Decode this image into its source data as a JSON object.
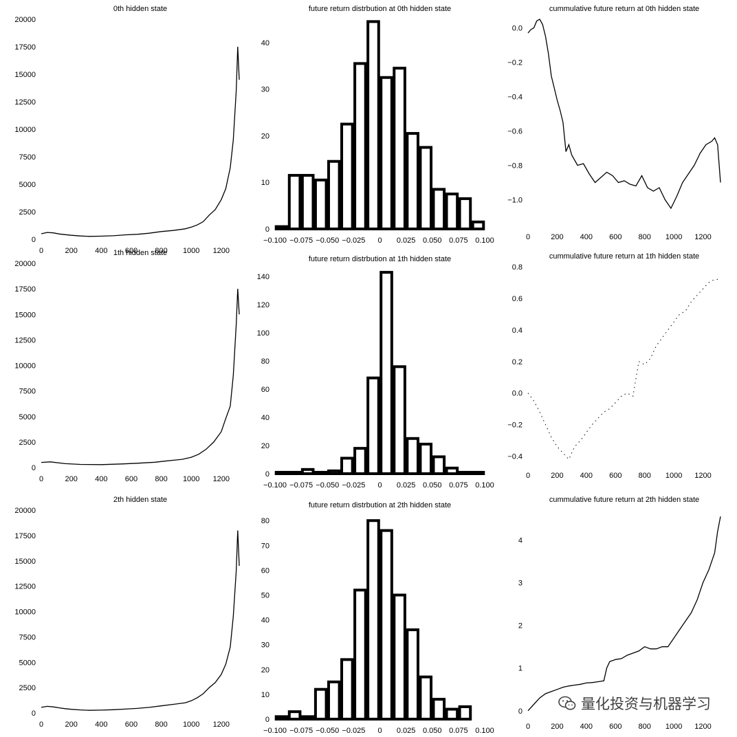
{
  "watermark": {
    "text": "量化投资与机器学习",
    "icon": "wechat-icon"
  },
  "chart_data": [
    {
      "type": "line",
      "title": "0th hidden state",
      "xlim": [
        0,
        1320
      ],
      "ylim": [
        0,
        20000
      ],
      "xticks": [
        0,
        200,
        400,
        600,
        800,
        1000,
        1200
      ],
      "yticks": [
        0,
        2500,
        5000,
        7500,
        10000,
        12500,
        15000,
        17500,
        20000
      ],
      "x": [
        0,
        40,
        80,
        120,
        160,
        200,
        260,
        320,
        400,
        480,
        560,
        640,
        720,
        800,
        880,
        960,
        1000,
        1040,
        1080,
        1120,
        1160,
        1200,
        1230,
        1260,
        1280,
        1300,
        1310,
        1320
      ],
      "y": [
        500,
        620,
        580,
        480,
        420,
        360,
        300,
        260,
        280,
        320,
        400,
        450,
        550,
        700,
        800,
        950,
        1100,
        1300,
        1600,
        2200,
        2700,
        3600,
        4600,
        6500,
        9000,
        13500,
        17500,
        14500
      ]
    },
    {
      "type": "bar",
      "title": "future return distrbution at 0th hidden state",
      "xlim": [
        -0.1,
        0.1
      ],
      "ylim": [
        0,
        45
      ],
      "xticks": [
        -0.1,
        -0.075,
        -0.05,
        -0.025,
        0.0,
        0.025,
        0.05,
        0.075,
        0.1
      ],
      "yticks": [
        0,
        10,
        20,
        30,
        40
      ],
      "x": [
        -0.09375,
        -0.08125,
        -0.06875,
        -0.05625,
        -0.04375,
        -0.03125,
        -0.01875,
        -0.00625,
        0.00625,
        0.01875,
        0.03125,
        0.04375,
        0.05625,
        0.06875,
        0.08125,
        0.09375
      ],
      "values": [
        0.5,
        11.5,
        11.5,
        10.5,
        14.5,
        22.5,
        35.5,
        44.5,
        32.5,
        34.5,
        20.5,
        17.5,
        8.5,
        7.5,
        6.5,
        1.5
      ]
    },
    {
      "type": "line",
      "title": "cummulative future return at 0th hidden state",
      "xlim": [
        0,
        1320
      ],
      "ylim": [
        -1.15,
        0.05
      ],
      "xticks": [
        0,
        200,
        400,
        600,
        800,
        1000,
        1200
      ],
      "yticks": [
        0.0,
        -0.2,
        -0.4,
        -0.6,
        -0.8,
        -1.0
      ],
      "x": [
        0,
        20,
        40,
        60,
        80,
        100,
        120,
        140,
        160,
        180,
        200,
        220,
        240,
        260,
        280,
        300,
        340,
        380,
        420,
        460,
        500,
        540,
        580,
        620,
        660,
        700,
        740,
        780,
        820,
        860,
        900,
        940,
        980,
        1020,
        1060,
        1100,
        1140,
        1180,
        1220,
        1260,
        1280,
        1300,
        1320
      ],
      "y": [
        -0.03,
        -0.01,
        0.0,
        0.04,
        0.05,
        0.02,
        -0.05,
        -0.15,
        -0.28,
        -0.35,
        -0.42,
        -0.48,
        -0.55,
        -0.72,
        -0.68,
        -0.74,
        -0.8,
        -0.79,
        -0.85,
        -0.9,
        -0.87,
        -0.84,
        -0.86,
        -0.9,
        -0.89,
        -0.91,
        -0.92,
        -0.86,
        -0.93,
        -0.95,
        -0.93,
        -1.0,
        -1.05,
        -0.98,
        -0.9,
        -0.85,
        -0.8,
        -0.73,
        -0.68,
        -0.66,
        -0.64,
        -0.68,
        -0.9
      ]
    },
    {
      "type": "line",
      "title": "1th hidden state",
      "xlim": [
        0,
        1320
      ],
      "ylim": [
        0,
        20000
      ],
      "xticks": [
        0,
        200,
        400,
        600,
        800,
        1000,
        1200
      ],
      "yticks": [
        0,
        2500,
        5000,
        7500,
        10000,
        12500,
        15000,
        17500,
        20000
      ],
      "x": [
        0,
        60,
        160,
        260,
        400,
        540,
        640,
        760,
        820,
        940,
        1000,
        1050,
        1100,
        1150,
        1200,
        1230,
        1260,
        1280,
        1300,
        1310,
        1320
      ],
      "y": [
        500,
        550,
        380,
        300,
        280,
        350,
        420,
        520,
        620,
        800,
        1000,
        1300,
        1800,
        2500,
        3500,
        4800,
        6000,
        9000,
        14000,
        17500,
        15000
      ]
    },
    {
      "type": "bar",
      "title": "future return distrbution at 1th hidden state",
      "xlim": [
        -0.1,
        0.1
      ],
      "ylim": [
        0,
        145
      ],
      "xticks": [
        -0.1,
        -0.075,
        -0.05,
        -0.025,
        0.0,
        0.025,
        0.05,
        0.075,
        0.1
      ],
      "yticks": [
        0,
        20,
        40,
        60,
        80,
        100,
        120,
        140
      ],
      "x": [
        -0.09375,
        -0.08125,
        -0.06875,
        -0.05625,
        -0.04375,
        -0.03125,
        -0.01875,
        -0.00625,
        0.00625,
        0.01875,
        0.03125,
        0.04375,
        0.05625,
        0.06875,
        0.08125,
        0.09375
      ],
      "values": [
        1,
        1,
        3,
        1,
        2,
        11,
        18,
        68,
        143,
        76,
        25,
        21,
        12,
        4,
        1,
        1
      ]
    },
    {
      "type": "line",
      "title": "cummulative future return at 1th hidden state",
      "xlim": [
        0,
        1320
      ],
      "ylim": [
        -0.45,
        0.8
      ],
      "xticks": [
        0,
        200,
        400,
        600,
        800,
        1000,
        1200
      ],
      "yticks": [
        -0.4,
        -0.2,
        0.0,
        0.2,
        0.4,
        0.6,
        0.8
      ],
      "x": [
        0,
        40,
        80,
        120,
        160,
        200,
        240,
        280,
        320,
        360,
        400,
        440,
        480,
        520,
        560,
        600,
        640,
        680,
        720,
        760,
        800,
        840,
        880,
        920,
        960,
        1000,
        1040,
        1080,
        1120,
        1160,
        1200,
        1240,
        1280,
        1320
      ],
      "y": [
        0.0,
        -0.05,
        -0.12,
        -0.2,
        -0.28,
        -0.34,
        -0.38,
        -0.42,
        -0.34,
        -0.3,
        -0.25,
        -0.2,
        -0.16,
        -0.12,
        -0.1,
        -0.06,
        -0.02,
        0.0,
        -0.02,
        0.2,
        0.18,
        0.22,
        0.3,
        0.35,
        0.4,
        0.45,
        0.5,
        0.52,
        0.58,
        0.62,
        0.66,
        0.7,
        0.72,
        0.72
      ]
    },
    {
      "type": "line",
      "title": "2th hidden state",
      "xlim": [
        0,
        1320
      ],
      "ylim": [
        0,
        20000
      ],
      "xticks": [
        0,
        200,
        400,
        600,
        800,
        1000,
        1200
      ],
      "yticks": [
        0,
        2500,
        5000,
        7500,
        10000,
        12500,
        15000,
        17500,
        20000
      ],
      "x": [
        0,
        40,
        80,
        120,
        160,
        200,
        260,
        320,
        400,
        480,
        560,
        640,
        720,
        800,
        880,
        960,
        1000,
        1040,
        1080,
        1120,
        1160,
        1200,
        1230,
        1260,
        1280,
        1300,
        1310,
        1320
      ],
      "y": [
        550,
        650,
        600,
        500,
        420,
        360,
        300,
        260,
        280,
        320,
        380,
        450,
        550,
        700,
        850,
        1000,
        1200,
        1500,
        1900,
        2500,
        3000,
        3800,
        4800,
        6500,
        9500,
        14000,
        18000,
        14500
      ]
    },
    {
      "type": "bar",
      "title": "future return distrbution at 2th hidden state",
      "xlim": [
        -0.1,
        0.1
      ],
      "ylim": [
        0,
        82
      ],
      "xticks": [
        -0.1,
        -0.075,
        -0.05,
        -0.025,
        0.0,
        0.025,
        0.05,
        0.075,
        0.1
      ],
      "yticks": [
        0,
        10,
        20,
        30,
        40,
        50,
        60,
        70,
        80
      ],
      "x": [
        -0.09375,
        -0.08125,
        -0.06875,
        -0.05625,
        -0.04375,
        -0.03125,
        -0.01875,
        -0.00625,
        0.00625,
        0.01875,
        0.03125,
        0.04375,
        0.05625,
        0.06875,
        0.08125,
        0.09375
      ],
      "values": [
        1,
        3,
        1,
        12,
        15,
        24,
        52,
        80,
        76,
        50,
        36,
        17,
        8,
        4,
        5,
        0
      ]
    },
    {
      "type": "line",
      "title": "cummulative future return at 2th hidden state",
      "xlim": [
        0,
        1320
      ],
      "ylim": [
        -0.1,
        4.7
      ],
      "xticks": [
        0,
        200,
        400,
        600,
        800,
        1000,
        1200
      ],
      "yticks": [
        0,
        1,
        2,
        3,
        4
      ],
      "x": [
        0,
        40,
        80,
        120,
        160,
        200,
        240,
        280,
        320,
        360,
        400,
        440,
        480,
        520,
        540,
        560,
        600,
        640,
        680,
        720,
        760,
        800,
        840,
        880,
        920,
        960,
        1000,
        1040,
        1080,
        1120,
        1160,
        1200,
        1240,
        1280,
        1300,
        1320
      ],
      "y": [
        0.0,
        0.15,
        0.3,
        0.4,
        0.45,
        0.5,
        0.55,
        0.58,
        0.6,
        0.62,
        0.65,
        0.66,
        0.68,
        0.7,
        1.0,
        1.15,
        1.2,
        1.22,
        1.3,
        1.35,
        1.4,
        1.5,
        1.45,
        1.45,
        1.5,
        1.5,
        1.7,
        1.9,
        2.1,
        2.3,
        2.6,
        3.0,
        3.3,
        3.7,
        4.2,
        4.55
      ]
    }
  ]
}
